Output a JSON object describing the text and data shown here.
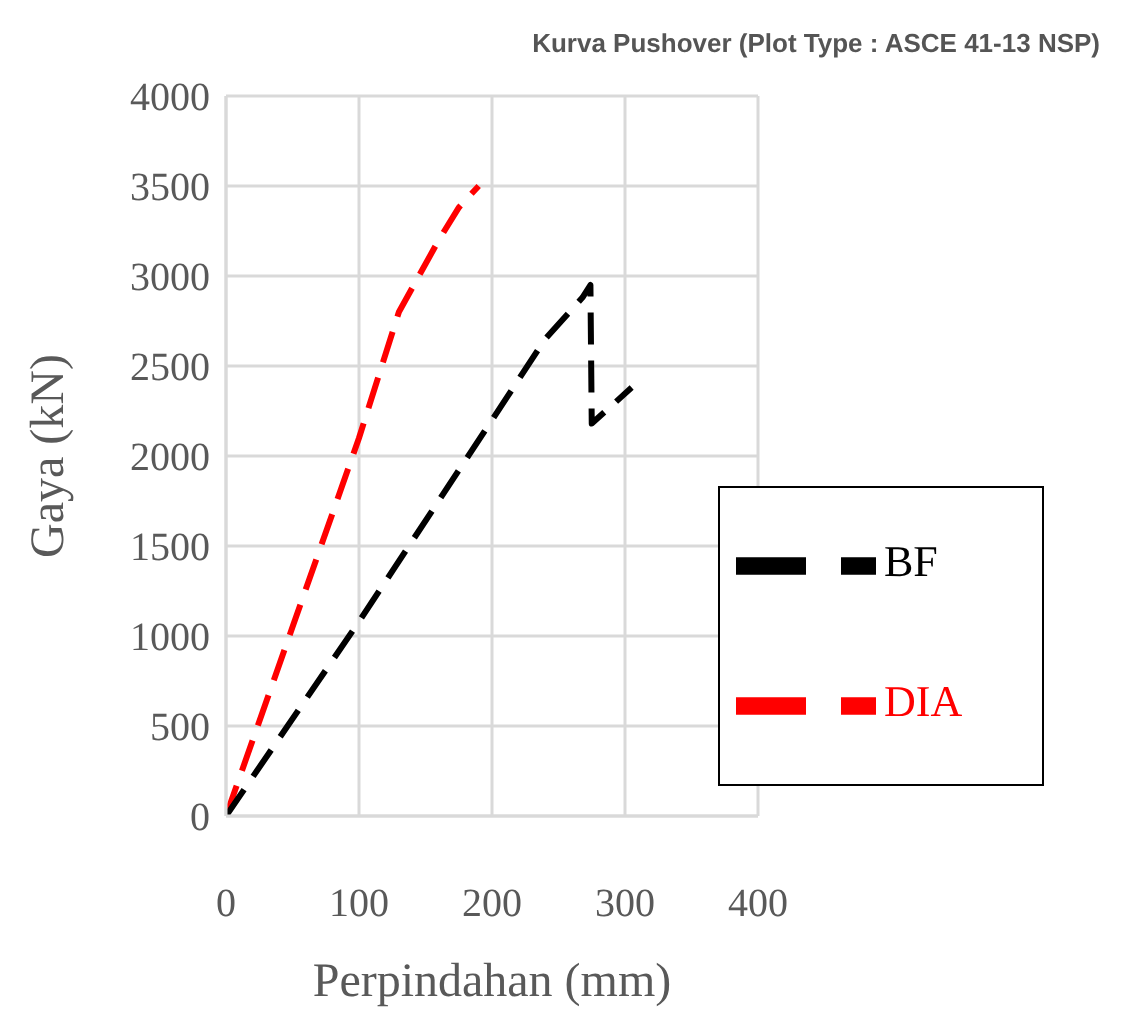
{
  "chart_data": {
    "type": "line",
    "title": "Kurva Pushover (Plot Type : ASCE 41-13 NSP)",
    "xlabel": "Perpindahan (mm)",
    "ylabel": "Gaya (kN)",
    "series": [
      {
        "name": "DIA",
        "color": "#ff0000",
        "x": [
          0,
          50,
          100,
          130,
          160,
          175,
          190
        ],
        "values": [
          0,
          1050,
          2100,
          2800,
          3200,
          3380,
          3500
        ]
      },
      {
        "name": "BF",
        "color": "#000000",
        "x": [
          0,
          100,
          200,
          240,
          268,
          274,
          275,
          305
        ],
        "values": [
          0,
          1080,
          2200,
          2650,
          2880,
          2950,
          2180,
          2380
        ]
      }
    ],
    "xlim": [
      0,
      400
    ],
    "xticks": [
      0,
      100,
      200,
      300,
      400
    ],
    "ylim": [
      0,
      4000
    ],
    "yticks": [
      0,
      500,
      1000,
      1500,
      2000,
      2500,
      3000,
      3500,
      4000
    ],
    "grid": true,
    "legend": "bottom right",
    "line_style": "dashed",
    "marker": "none"
  }
}
